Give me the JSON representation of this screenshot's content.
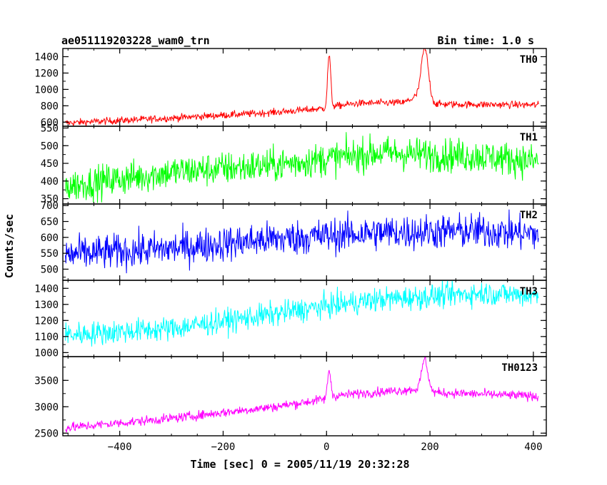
{
  "chart_data": {
    "type": "line",
    "title": "ae051119203228_wam0_trn",
    "bin_label": "Bin time: 1.0 s",
    "xlabel": "Time [sec] 0 = 2005/11/19 20:32:28",
    "ylabel": "Counts/sec",
    "xlim": [
      -510,
      425
    ],
    "x_ticks": [
      -400,
      -200,
      0,
      200,
      400
    ],
    "x_tick_labels": [
      "−400",
      "−200",
      "0",
      "200",
      "400"
    ],
    "grid": false,
    "panels": [
      {
        "name": "TH0",
        "color": "#ff0000",
        "ylim": [
          550,
          1500
        ],
        "ticks": [
          600,
          800,
          1000,
          1200,
          1400
        ],
        "tick_labels": [
          "600",
          "800",
          "1000",
          "1200",
          "1400"
        ],
        "trend": [
          [
            -505,
            590
          ],
          [
            -300,
            650
          ],
          [
            -100,
            720
          ],
          [
            0,
            770
          ],
          [
            10,
            790
          ],
          [
            60,
            830
          ],
          [
            150,
            840
          ],
          [
            170,
            900
          ],
          [
            210,
            820
          ],
          [
            410,
            810
          ]
        ],
        "noise": 22,
        "peaks": [
          [
            5,
            1420,
            3
          ],
          [
            190,
            1500,
            7
          ]
        ]
      },
      {
        "name": "TH1",
        "color": "#00ff00",
        "ylim": [
          335,
          555
        ],
        "ticks": [
          350,
          400,
          450,
          500,
          550
        ],
        "tick_labels": [
          "350",
          "400",
          "450",
          "500",
          "550"
        ],
        "trend": [
          [
            -505,
            385
          ],
          [
            -300,
            425
          ],
          [
            -100,
            445
          ],
          [
            100,
            480
          ],
          [
            300,
            470
          ],
          [
            410,
            455
          ]
        ],
        "noise": 24,
        "peaks": []
      },
      {
        "name": "TH2",
        "color": "#0000ff",
        "ylim": [
          465,
          705
        ],
        "ticks": [
          500,
          550,
          600,
          650,
          700
        ],
        "tick_labels": [
          "500",
          "550",
          "600",
          "650",
          "700"
        ],
        "trend": [
          [
            -505,
            545
          ],
          [
            -300,
            565
          ],
          [
            -100,
            595
          ],
          [
            100,
            615
          ],
          [
            300,
            620
          ],
          [
            410,
            610
          ]
        ],
        "noise": 28,
        "peaks": []
      },
      {
        "name": "TH3",
        "color": "#00ffff",
        "ylim": [
          975,
          1450
        ],
        "ticks": [
          1000,
          1100,
          1200,
          1300,
          1400
        ],
        "tick_labels": [
          "1000",
          "1100",
          "1200",
          "1300",
          "1400"
        ],
        "trend": [
          [
            -505,
            1110
          ],
          [
            -300,
            1150
          ],
          [
            -100,
            1240
          ],
          [
            0,
            1290
          ],
          [
            100,
            1330
          ],
          [
            300,
            1370
          ],
          [
            410,
            1355
          ]
        ],
        "noise": 38,
        "peaks": []
      },
      {
        "name": "TH0123",
        "color": "#ff00ff",
        "ylim": [
          2450,
          3950
        ],
        "ticks": [
          2500,
          3000,
          3500
        ],
        "tick_labels": [
          "2500",
          "3000",
          "3500"
        ],
        "trend": [
          [
            -505,
            2600
          ],
          [
            -300,
            2780
          ],
          [
            -100,
            3000
          ],
          [
            0,
            3150
          ],
          [
            10,
            3200
          ],
          [
            60,
            3250
          ],
          [
            170,
            3330
          ],
          [
            210,
            3270
          ],
          [
            410,
            3200
          ]
        ],
        "noise": 45,
        "peaks": [
          [
            5,
            3700,
            3
          ],
          [
            190,
            3900,
            6
          ]
        ]
      }
    ]
  }
}
